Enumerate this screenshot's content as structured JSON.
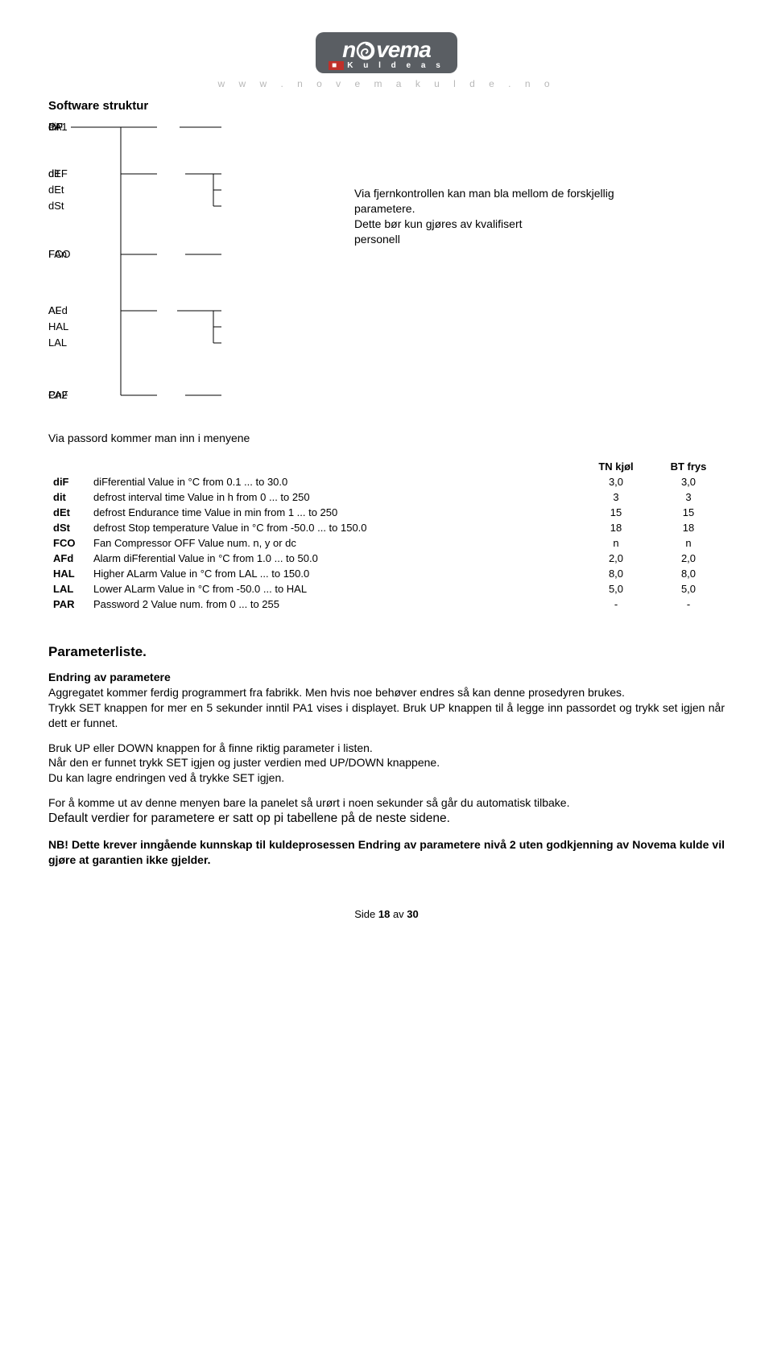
{
  "logo": {
    "main_prefix": "n",
    "main_suffix": "vema",
    "subtitle": "K u l d e a s",
    "url": "w w w . n o v e m a k u l d e . n o"
  },
  "section_title": "Software struktur",
  "tree": {
    "nodes": {
      "PA1": "PA1",
      "CP": "CP",
      "diF": "diF",
      "dEF": "dEF",
      "dit": "dit",
      "dEt": "dEt",
      "dSt": "dSt",
      "FAn": "FAn",
      "FCO": "FCO",
      "AL": "AL",
      "AFd": "AFd",
      "HAL": "HAL",
      "LAL": "LAL",
      "CnF": "CnF",
      "PA2": "PA2"
    }
  },
  "caption": {
    "line1": "Via fjernkontrollen kan man bla mellom de forskjellig",
    "line2": "parametere.",
    "line3": "Dette bør kun gjøres av kvalifisert",
    "line4": "personell"
  },
  "menu_line": "Via passord kommer man inn i menyene",
  "table": {
    "headers": {
      "col2": "",
      "col3": "TN kjøl",
      "col4": "BT frys"
    },
    "rows": [
      {
        "code": "diF",
        "desc": "diFferential Value in °C from 0.1 ... to 30.0",
        "v1": "3,0",
        "v2": "3,0"
      },
      {
        "code": "dit",
        "desc": "defrost interval time Value in h from 0 ... to 250",
        "v1": "3",
        "v2": "3"
      },
      {
        "code": "dEt",
        "desc": "defrost Endurance time Value in min from 1 ... to 250",
        "v1": "15",
        "v2": "15"
      },
      {
        "code": "dSt",
        "desc": "defrost Stop temperature Value in °C from -50.0 ... to 150.0",
        "v1": "18",
        "v2": "18"
      },
      {
        "code": "FCO",
        "desc": "Fan Compressor OFF Value num. n, y or dc",
        "v1": "n",
        "v2": "n"
      },
      {
        "code": "AFd",
        "desc": "Alarm diFferential Value in °C from 1.0 ... to 50.0",
        "v1": "2,0",
        "v2": "2,0"
      },
      {
        "code": "HAL",
        "desc": "Higher ALarm Value in °C from LAL ... to 150.0",
        "v1": "8,0",
        "v2": "8,0"
      },
      {
        "code": "LAL",
        "desc": "Lower ALarm Value in °C from -50.0 ... to HAL",
        "v1": "5,0",
        "v2": "5,0"
      },
      {
        "code": "PAR",
        "desc": "Password 2 Value num. from 0 ... to 255",
        "v1": "-",
        "v2": "-"
      }
    ]
  },
  "paramlist_heading": "Parameterliste.",
  "paragraphs": {
    "p1_bold": "Endring av parametere",
    "p1": "Aggregatet kommer ferdig programmert fra fabrikk. Men hvis noe behøver endres så kan denne prosedyren brukes.",
    "p2": "Trykk SET knappen for mer en 5 sekunder inntil PA1 vises i displayet. Bruk UP knappen til å legge inn passordet og trykk set igjen når dett er funnet.",
    "p3a": "Bruk UP eller DOWN knappen for å finne riktig parameter i listen.",
    "p3b": "Når den er funnet trykk SET igjen og juster verdien med UP/DOWN knappene.",
    "p3c": "Du kan lagre endringen ved å trykke SET igjen.",
    "p4a": "For å komme ut av denne menyen bare la panelet så urørt i noen sekunder så går du automatisk tilbake.",
    "p4b": "Default verdier for parametere er satt op pi tabellene på de neste sidene.",
    "p5": "NB! Dette krever inngående kunnskap til kuldeprosessen  Endring av parametere nivå 2 uten godkjenning av Novema kulde vil gjøre at garantien ikke gjelder."
  },
  "footer": {
    "prefix": "Side ",
    "page": "18",
    "mid": " av ",
    "total": "30"
  },
  "colors": {
    "logo_bg": "#5a5e63",
    "logo_fg": "#ffffff",
    "url_grey": "#b8b8b8",
    "line": "#000000"
  }
}
